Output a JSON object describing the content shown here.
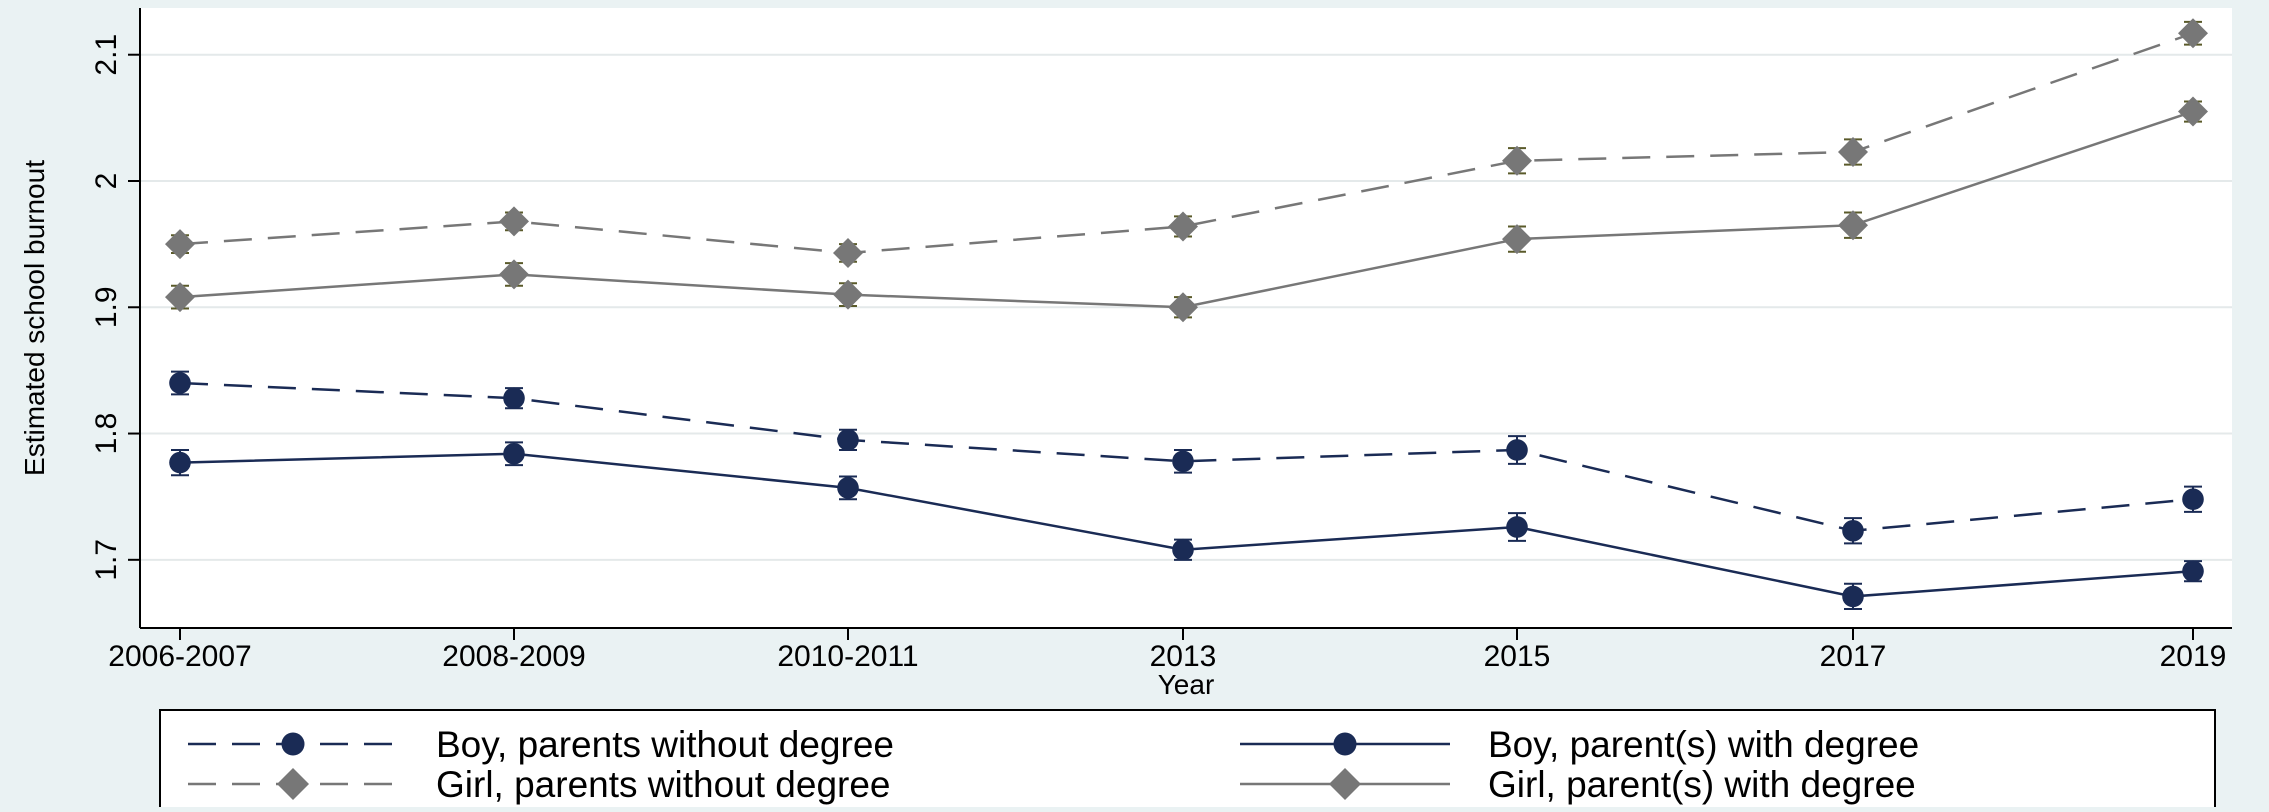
{
  "chart_data": {
    "type": "line",
    "xlabel": "Year",
    "ylabel": "Estimated school burnout",
    "categories": [
      "2006-2007",
      "2008-2009",
      "2010-2011",
      "2013",
      "2015",
      "2017",
      "2019"
    ],
    "yticks": [
      "1.7",
      "1.8",
      "1.9",
      "2",
      "2.1"
    ],
    "ylim": [
      1.646,
      2.137
    ],
    "grid": "horizontal",
    "legend_position": "bottom",
    "series": [
      {
        "name": "Boy, parents without degree",
        "marker": "circle",
        "dash": "dashed",
        "color": "#1a2b55",
        "values": [
          1.84,
          1.828,
          1.795,
          1.778,
          1.787,
          1.723,
          1.748
        ],
        "ci": [
          0.009,
          0.008,
          0.008,
          0.009,
          0.011,
          0.01,
          0.01
        ]
      },
      {
        "name": "Boy, parent(s) with degree",
        "marker": "circle",
        "dash": "solid",
        "color": "#1a2b55",
        "values": [
          1.777,
          1.784,
          1.757,
          1.708,
          1.726,
          1.671,
          1.691
        ],
        "ci": [
          0.01,
          0.009,
          0.009,
          0.008,
          0.011,
          0.01,
          0.008
        ]
      },
      {
        "name": "Girl, parents without degree",
        "marker": "diamond",
        "dash": "dashed",
        "color": "#777777",
        "values": [
          1.95,
          1.968,
          1.943,
          1.964,
          2.016,
          2.023,
          2.117
        ],
        "ci": [
          0.007,
          0.007,
          0.007,
          0.008,
          0.01,
          0.01,
          0.009
        ]
      },
      {
        "name": "Girl, parent(s) with degree",
        "marker": "diamond",
        "dash": "solid",
        "color": "#777777",
        "values": [
          1.908,
          1.926,
          1.91,
          1.9,
          1.954,
          1.965,
          2.055
        ],
        "ci": [
          0.009,
          0.009,
          0.009,
          0.008,
          0.01,
          0.01,
          0.008
        ]
      }
    ],
    "legend_order": [
      0,
      1,
      2,
      3
    ]
  }
}
